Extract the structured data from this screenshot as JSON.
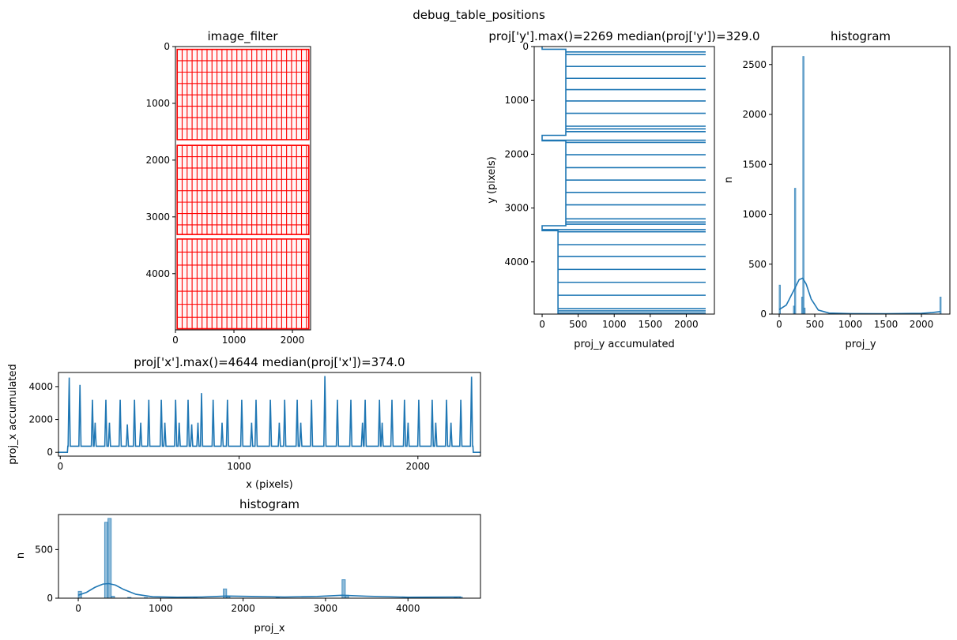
{
  "figure_title": "debug_table_positions",
  "colors": {
    "line": "#1f77b4",
    "bar": "#1f77b4",
    "grid_red": "#ff0000",
    "axis": "#000000"
  },
  "chart_data": [
    {
      "id": "image_filter",
      "type": "heatmap",
      "title": "image_filter",
      "xlabel": "",
      "ylabel": "",
      "xlim": [
        0,
        2310
      ],
      "ylim": [
        4990,
        0
      ],
      "x_ticks": [
        0,
        1000,
        2000
      ],
      "y_ticks": [
        0,
        1000,
        2000,
        3000,
        4000
      ],
      "table_blocks": [
        {
          "y0": 50,
          "y1": 1640,
          "col_step": 85,
          "row_step": 200
        },
        {
          "y0": 1740,
          "y1": 3310,
          "col_step": 85,
          "row_step": 200
        },
        {
          "y0": 3390,
          "y1": 4970,
          "col_step": 85,
          "row_step": 230
        }
      ],
      "grid": false
    },
    {
      "id": "proj_y",
      "type": "line",
      "title": "proj['y'].max()=2269 median(proj['y'])=329.0",
      "xlabel": "proj_y accumulated",
      "ylabel": "y (pixels)",
      "xlim": [
        -110,
        2390
      ],
      "ylim": [
        4970,
        0
      ],
      "x_ticks": [
        0,
        500,
        1000,
        1500,
        2000
      ],
      "y_ticks": [
        0,
        1000,
        2000,
        3000,
        4000
      ],
      "baseline_segments": [
        {
          "y0": 0,
          "y1": 50,
          "x": 0
        },
        {
          "y0": 50,
          "y1": 1650,
          "x": 329
        },
        {
          "y0": 1650,
          "y1": 1750,
          "x": 0
        },
        {
          "y0": 1750,
          "y1": 3330,
          "x": 329
        },
        {
          "y0": 3330,
          "y1": 3420,
          "x": 0
        },
        {
          "y0": 3420,
          "y1": 4970,
          "x": 220
        }
      ],
      "spikes_y": [
        100,
        150,
        370,
        590,
        800,
        1010,
        1240,
        1480,
        1530,
        1580,
        1740,
        1780,
        2010,
        2250,
        2480,
        2710,
        2940,
        3200,
        3260,
        3300,
        3400,
        3440,
        3680,
        3900,
        4140,
        4380,
        4620,
        4870,
        4910,
        4950
      ],
      "spike_max": 2269,
      "grid": false
    },
    {
      "id": "hist_y",
      "type": "bar",
      "title": "histogram",
      "xlabel": "proj_y",
      "ylabel": "n",
      "xlim": [
        -100,
        2400
      ],
      "ylim": [
        0,
        2680
      ],
      "x_ticks": [
        0,
        500,
        1000,
        1500,
        2000
      ],
      "y_ticks": [
        0,
        500,
        1000,
        1500,
        2000,
        2500
      ],
      "bars": [
        {
          "x": 0,
          "w": 16,
          "v": 290
        },
        {
          "x": 200,
          "w": 16,
          "v": 80
        },
        {
          "x": 216,
          "w": 16,
          "v": 1260
        },
        {
          "x": 316,
          "w": 16,
          "v": 170
        },
        {
          "x": 332,
          "w": 16,
          "v": 2580
        },
        {
          "x": 348,
          "w": 16,
          "v": 60
        },
        {
          "x": 2260,
          "w": 16,
          "v": 170
        }
      ],
      "kde": [
        [
          0,
          45
        ],
        [
          100,
          90
        ],
        [
          200,
          230
        ],
        [
          280,
          345
        ],
        [
          330,
          360
        ],
        [
          380,
          300
        ],
        [
          450,
          150
        ],
        [
          550,
          40
        ],
        [
          700,
          10
        ],
        [
          1000,
          5
        ],
        [
          1500,
          3
        ],
        [
          2000,
          8
        ],
        [
          2150,
          15
        ],
        [
          2269,
          25
        ]
      ],
      "grid": false
    },
    {
      "id": "proj_x",
      "type": "line",
      "title": "proj['x'].max()=4644 median(proj['x'])=374.0",
      "xlabel": "x (pixels)",
      "ylabel": "proj_x accumulated",
      "xlim": [
        -10,
        2350
      ],
      "ylim": [
        -230,
        4860
      ],
      "x_ticks": [
        0,
        1000,
        2000
      ],
      "y_ticks": [
        0,
        2000,
        4000
      ],
      "baseline": 374,
      "edge_zero": [
        [
          0,
          40
        ],
        [
          2310,
          2350
        ]
      ],
      "peaks": [
        {
          "x": 50,
          "v": 4550
        },
        {
          "x": 110,
          "v": 4100
        },
        {
          "x": 180,
          "v": 3200
        },
        {
          "x": 195,
          "v": 1800
        },
        {
          "x": 255,
          "v": 3200
        },
        {
          "x": 275,
          "v": 1800
        },
        {
          "x": 335,
          "v": 3200
        },
        {
          "x": 375,
          "v": 1700
        },
        {
          "x": 415,
          "v": 3200
        },
        {
          "x": 450,
          "v": 1800
        },
        {
          "x": 495,
          "v": 3200
        },
        {
          "x": 565,
          "v": 3200
        },
        {
          "x": 585,
          "v": 1800
        },
        {
          "x": 645,
          "v": 3200
        },
        {
          "x": 665,
          "v": 1800
        },
        {
          "x": 715,
          "v": 3200
        },
        {
          "x": 735,
          "v": 1700
        },
        {
          "x": 770,
          "v": 1800
        },
        {
          "x": 790,
          "v": 3600
        },
        {
          "x": 855,
          "v": 3200
        },
        {
          "x": 905,
          "v": 1800
        },
        {
          "x": 935,
          "v": 3200
        },
        {
          "x": 1015,
          "v": 3200
        },
        {
          "x": 1070,
          "v": 1800
        },
        {
          "x": 1095,
          "v": 3200
        },
        {
          "x": 1175,
          "v": 3200
        },
        {
          "x": 1225,
          "v": 1800
        },
        {
          "x": 1255,
          "v": 3200
        },
        {
          "x": 1325,
          "v": 3200
        },
        {
          "x": 1345,
          "v": 1800
        },
        {
          "x": 1405,
          "v": 3200
        },
        {
          "x": 1480,
          "v": 4644
        },
        {
          "x": 1550,
          "v": 3200
        },
        {
          "x": 1625,
          "v": 3200
        },
        {
          "x": 1690,
          "v": 1800
        },
        {
          "x": 1705,
          "v": 3200
        },
        {
          "x": 1785,
          "v": 3200
        },
        {
          "x": 1800,
          "v": 1800
        },
        {
          "x": 1855,
          "v": 3200
        },
        {
          "x": 1925,
          "v": 3200
        },
        {
          "x": 1945,
          "v": 1800
        },
        {
          "x": 2005,
          "v": 3200
        },
        {
          "x": 2080,
          "v": 3200
        },
        {
          "x": 2100,
          "v": 1800
        },
        {
          "x": 2160,
          "v": 3200
        },
        {
          "x": 2185,
          "v": 1800
        },
        {
          "x": 2240,
          "v": 3200
        },
        {
          "x": 2300,
          "v": 4600
        }
      ],
      "grid": false
    },
    {
      "id": "hist_x",
      "type": "bar",
      "title": "histogram",
      "xlabel": "proj_x",
      "ylabel": "n",
      "xlim": [
        -240,
        4880
      ],
      "ylim": [
        0,
        860
      ],
      "x_ticks": [
        0,
        1000,
        2000,
        3000,
        4000
      ],
      "y_ticks": [
        0,
        500
      ],
      "bars": [
        {
          "x": 0,
          "w": 40,
          "v": 70
        },
        {
          "x": 320,
          "w": 40,
          "v": 780
        },
        {
          "x": 360,
          "w": 40,
          "v": 820
        },
        {
          "x": 400,
          "w": 40,
          "v": 20
        },
        {
          "x": 600,
          "w": 40,
          "v": 8
        },
        {
          "x": 800,
          "w": 40,
          "v": 6
        },
        {
          "x": 1400,
          "w": 40,
          "v": 10
        },
        {
          "x": 1760,
          "w": 40,
          "v": 95
        },
        {
          "x": 1800,
          "w": 40,
          "v": 15
        },
        {
          "x": 2400,
          "w": 40,
          "v": 6
        },
        {
          "x": 3200,
          "w": 40,
          "v": 190
        },
        {
          "x": 3240,
          "w": 40,
          "v": 30
        },
        {
          "x": 4560,
          "w": 40,
          "v": 8
        },
        {
          "x": 4620,
          "w": 40,
          "v": 10
        }
      ],
      "kde": [
        [
          0,
          30
        ],
        [
          100,
          60
        ],
        [
          200,
          110
        ],
        [
          300,
          145
        ],
        [
          370,
          150
        ],
        [
          450,
          135
        ],
        [
          550,
          90
        ],
        [
          700,
          40
        ],
        [
          900,
          15
        ],
        [
          1200,
          10
        ],
        [
          1500,
          12
        ],
        [
          1800,
          22
        ],
        [
          2100,
          18
        ],
        [
          2500,
          12
        ],
        [
          2900,
          18
        ],
        [
          3200,
          30
        ],
        [
          3500,
          20
        ],
        [
          4000,
          10
        ],
        [
          4644,
          12
        ]
      ],
      "grid": false
    }
  ]
}
